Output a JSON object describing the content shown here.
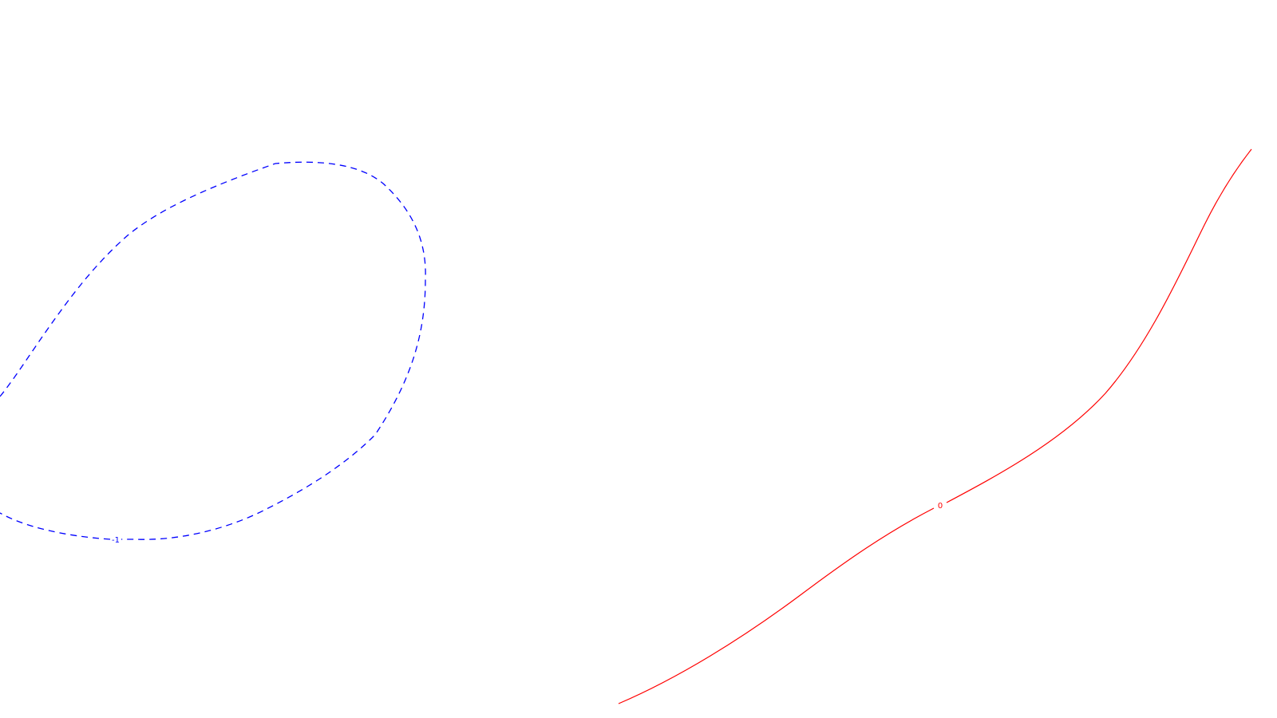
{
  "contours": [
    {
      "id": "contour-negative-one",
      "label": "-1",
      "color": "#0000ff",
      "line_style": "dashed"
    },
    {
      "id": "contour-zero",
      "label": "0",
      "color": "#ff0000",
      "line_style": "solid"
    }
  ]
}
